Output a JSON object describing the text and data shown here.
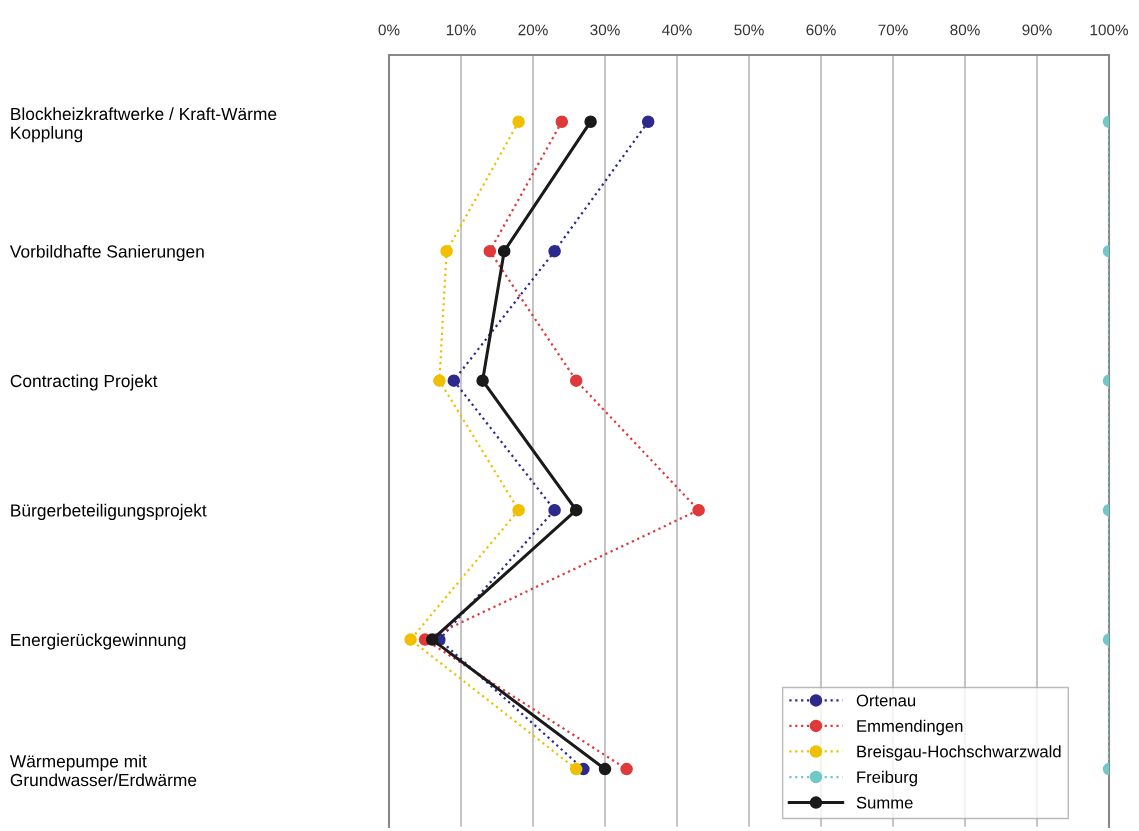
{
  "chart_data": {
    "type": "line",
    "orientation": "horizontal",
    "categories": [
      "Blockheizkraftwerke / Kraft-Wärme\nKopplung",
      "Vorbildhafte Sanierungen",
      "Contracting Projekt",
      "Bürgerbeteiligungsprojekt",
      "Energierückgewinnung",
      "Wärmepumpe mit\nGrundwasser/Erdwärme"
    ],
    "series": [
      {
        "name": "Ortenau",
        "color": "#2e2a8c",
        "line_style": "dotted",
        "values": [
          36,
          23,
          9,
          23,
          7,
          27
        ]
      },
      {
        "name": "Emmendingen",
        "color": "#e0393a",
        "line_style": "dotted",
        "values": [
          24,
          14,
          26,
          43,
          5,
          33
        ]
      },
      {
        "name": "Breisgau-Hochschwarzwald",
        "color": "#f0c000",
        "line_style": "dotted",
        "values": [
          18,
          8,
          7,
          18,
          3,
          26
        ]
      },
      {
        "name": "Freiburg",
        "color": "#70c8c8",
        "line_style": "dotted",
        "values": [
          100,
          100,
          100,
          100,
          100,
          100
        ]
      },
      {
        "name": "Summe",
        "color": "#1a1a1a",
        "line_style": "solid",
        "values": [
          28,
          16,
          13,
          26,
          6,
          30
        ]
      }
    ],
    "xlim": [
      0,
      100
    ],
    "xticks": [
      {
        "value": 0,
        "label": "0%"
      },
      {
        "value": 10,
        "label": "10%"
      },
      {
        "value": 20,
        "label": "20%"
      },
      {
        "value": 30,
        "label": "30%"
      },
      {
        "value": 40,
        "label": "40%"
      },
      {
        "value": 50,
        "label": "50%"
      },
      {
        "value": 60,
        "label": "60%"
      },
      {
        "value": 70,
        "label": "70%"
      },
      {
        "value": 80,
        "label": "80%"
      },
      {
        "value": 90,
        "label": "90%"
      },
      {
        "value": 100,
        "label": "100%"
      }
    ],
    "grid": "x",
    "legend": "bottom right",
    "marker": "circle"
  }
}
